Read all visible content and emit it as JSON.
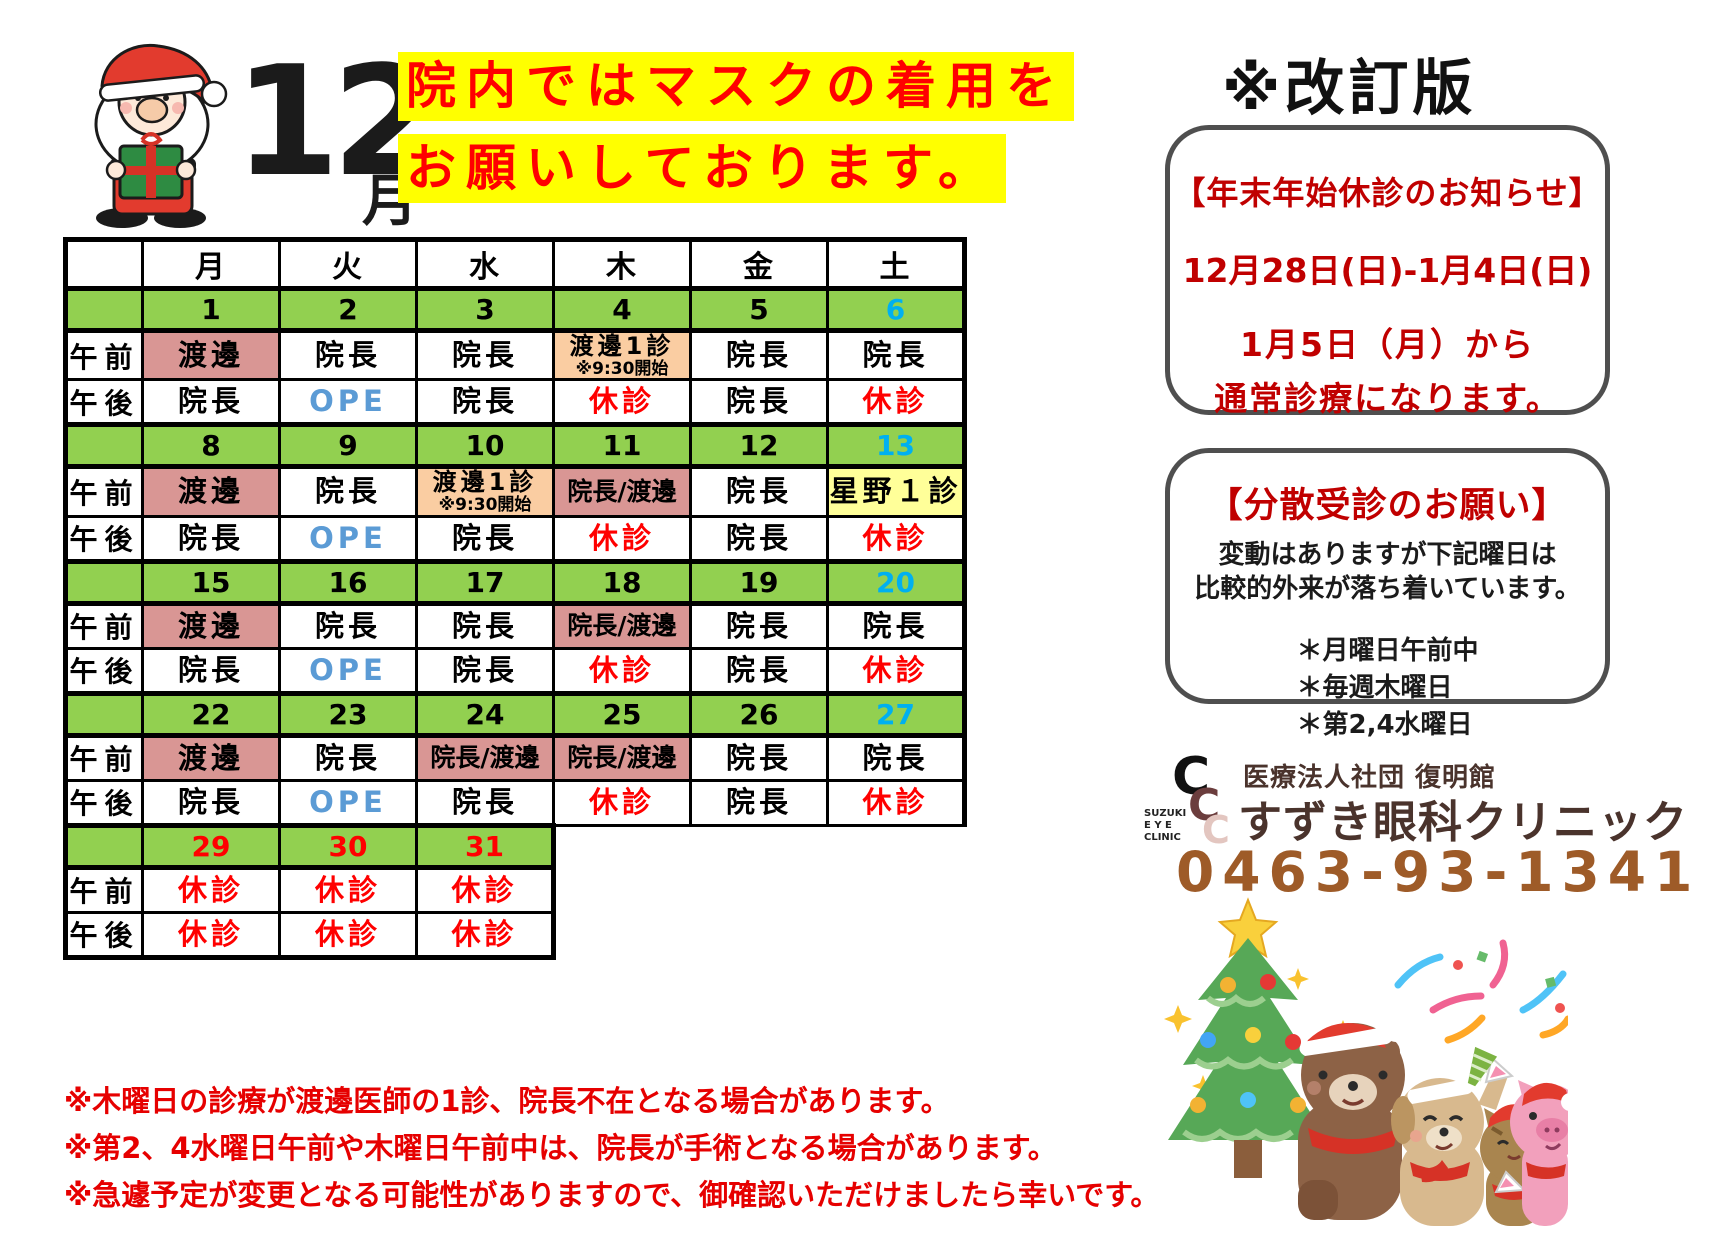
{
  "month": {
    "number": "12",
    "kanji": "月"
  },
  "mask_notice": {
    "line1": "院内ではマスクの着用を",
    "line2": "お願いしております。"
  },
  "revision_label": "※改訂版",
  "holiday_notice": {
    "title": "【年末年始休診のお知らせ】",
    "period": "12月28日(日)-1月4日(日)",
    "resume_line1": "1月5日（月）から",
    "resume_line2": "通常診療になります。"
  },
  "dispersion_notice": {
    "title": "【分散受診のお願い】",
    "body_line1": "変動はありますが下記曜日は",
    "body_line2": "比較的外来が落ち着いています。",
    "bullets": [
      "＊月曜日午前中",
      "＊毎週木曜日",
      "＊第2,4水曜日"
    ]
  },
  "clinic": {
    "logo_text": [
      "SUZUKI",
      "E Y E",
      "CLINIC"
    ],
    "org": "医療法人社団 復明館",
    "name": "すずき眼科クリニック",
    "phone": "0463-93-1341"
  },
  "calendar": {
    "day_headers": [
      "月",
      "火",
      "水",
      "木",
      "金",
      "土"
    ],
    "row_labels": {
      "am": "午前",
      "pm": "午後"
    },
    "weeks": [
      {
        "dates": [
          {
            "n": "1",
            "c": "k"
          },
          {
            "n": "2",
            "c": "k"
          },
          {
            "n": "3",
            "c": "k"
          },
          {
            "n": "4",
            "c": "k"
          },
          {
            "n": "5",
            "c": "k"
          },
          {
            "n": "6",
            "c": "b"
          }
        ],
        "am": [
          {
            "t": "渡邊",
            "bg": "pink"
          },
          {
            "t": "院長"
          },
          {
            "t": "院長"
          },
          {
            "t": "渡邊1診",
            "sub": "※9:30開始",
            "bg": "peach"
          },
          {
            "t": "院長"
          },
          {
            "t": "院長"
          }
        ],
        "pm": [
          {
            "t": "院長"
          },
          {
            "t": "OPE",
            "c": "blue"
          },
          {
            "t": "院長"
          },
          {
            "t": "休診",
            "c": "red"
          },
          {
            "t": "院長"
          },
          {
            "t": "休診",
            "c": "red"
          }
        ]
      },
      {
        "dates": [
          {
            "n": "8",
            "c": "k"
          },
          {
            "n": "9",
            "c": "k"
          },
          {
            "n": "10",
            "c": "k"
          },
          {
            "n": "11",
            "c": "k"
          },
          {
            "n": "12",
            "c": "k"
          },
          {
            "n": "13",
            "c": "b"
          }
        ],
        "am": [
          {
            "t": "渡邊",
            "bg": "pink"
          },
          {
            "t": "院長"
          },
          {
            "t": "渡邊1診",
            "sub": "※9:30開始",
            "bg": "peach"
          },
          {
            "t": "院長/渡邊",
            "bg": "pink"
          },
          {
            "t": "院長"
          },
          {
            "t": "星野１診",
            "bg": "yellow"
          }
        ],
        "pm": [
          {
            "t": "院長"
          },
          {
            "t": "OPE",
            "c": "blue"
          },
          {
            "t": "院長"
          },
          {
            "t": "休診",
            "c": "red"
          },
          {
            "t": "院長"
          },
          {
            "t": "休診",
            "c": "red"
          }
        ]
      },
      {
        "dates": [
          {
            "n": "15",
            "c": "k"
          },
          {
            "n": "16",
            "c": "k"
          },
          {
            "n": "17",
            "c": "k"
          },
          {
            "n": "18",
            "c": "k"
          },
          {
            "n": "19",
            "c": "k"
          },
          {
            "n": "20",
            "c": "b"
          }
        ],
        "am": [
          {
            "t": "渡邊",
            "bg": "pink"
          },
          {
            "t": "院長"
          },
          {
            "t": "院長"
          },
          {
            "t": "院長/渡邊",
            "bg": "pink"
          },
          {
            "t": "院長"
          },
          {
            "t": "院長"
          }
        ],
        "pm": [
          {
            "t": "院長"
          },
          {
            "t": "OPE",
            "c": "blue"
          },
          {
            "t": "院長"
          },
          {
            "t": "休診",
            "c": "red"
          },
          {
            "t": "院長"
          },
          {
            "t": "休診",
            "c": "red"
          }
        ]
      },
      {
        "dates": [
          {
            "n": "22",
            "c": "k"
          },
          {
            "n": "23",
            "c": "k"
          },
          {
            "n": "24",
            "c": "k"
          },
          {
            "n": "25",
            "c": "k"
          },
          {
            "n": "26",
            "c": "k"
          },
          {
            "n": "27",
            "c": "b"
          }
        ],
        "am": [
          {
            "t": "渡邊",
            "bg": "pink"
          },
          {
            "t": "院長"
          },
          {
            "t": "院長/渡邊",
            "bg": "pink"
          },
          {
            "t": "院長/渡邊",
            "bg": "pink"
          },
          {
            "t": "院長"
          },
          {
            "t": "院長"
          }
        ],
        "pm": [
          {
            "t": "院長"
          },
          {
            "t": "OPE",
            "c": "blue"
          },
          {
            "t": "院長"
          },
          {
            "t": "休診",
            "c": "red"
          },
          {
            "t": "院長"
          },
          {
            "t": "休診",
            "c": "red"
          }
        ]
      },
      {
        "dates": [
          {
            "n": "29",
            "c": "r"
          },
          {
            "n": "30",
            "c": "r"
          },
          {
            "n": "31",
            "c": "r"
          }
        ],
        "am": [
          {
            "t": "休診",
            "c": "red"
          },
          {
            "t": "休診",
            "c": "red"
          },
          {
            "t": "休診",
            "c": "red"
          }
        ],
        "pm": [
          {
            "t": "休診",
            "c": "red"
          },
          {
            "t": "休診",
            "c": "red"
          },
          {
            "t": "休診",
            "c": "red"
          }
        ]
      }
    ]
  },
  "notes": [
    "※木曜日の診療が渡邊医師の1診、院長不在となる場合があります。",
    "※第2、4水曜日午前や木曜日午前中は、院長が手術となる場合があります。",
    "※急遽予定が変更となる可能性がありますので、御確認いただけましたら幸いです。"
  ],
  "colors": {
    "green": "#92D050",
    "pink": "#D99694",
    "peach": "#FACDA2",
    "yellow": "#FFFF99",
    "red": "#FF0000",
    "blue": "#5B9BD5",
    "saturday_blue": "#00B0F0",
    "notice_red": "#C00000",
    "footer_red": "#E60000",
    "phone_brown": "#9E5B28",
    "clinic_brown": "#4A332C",
    "mask_yellow": "#FFFF00"
  }
}
